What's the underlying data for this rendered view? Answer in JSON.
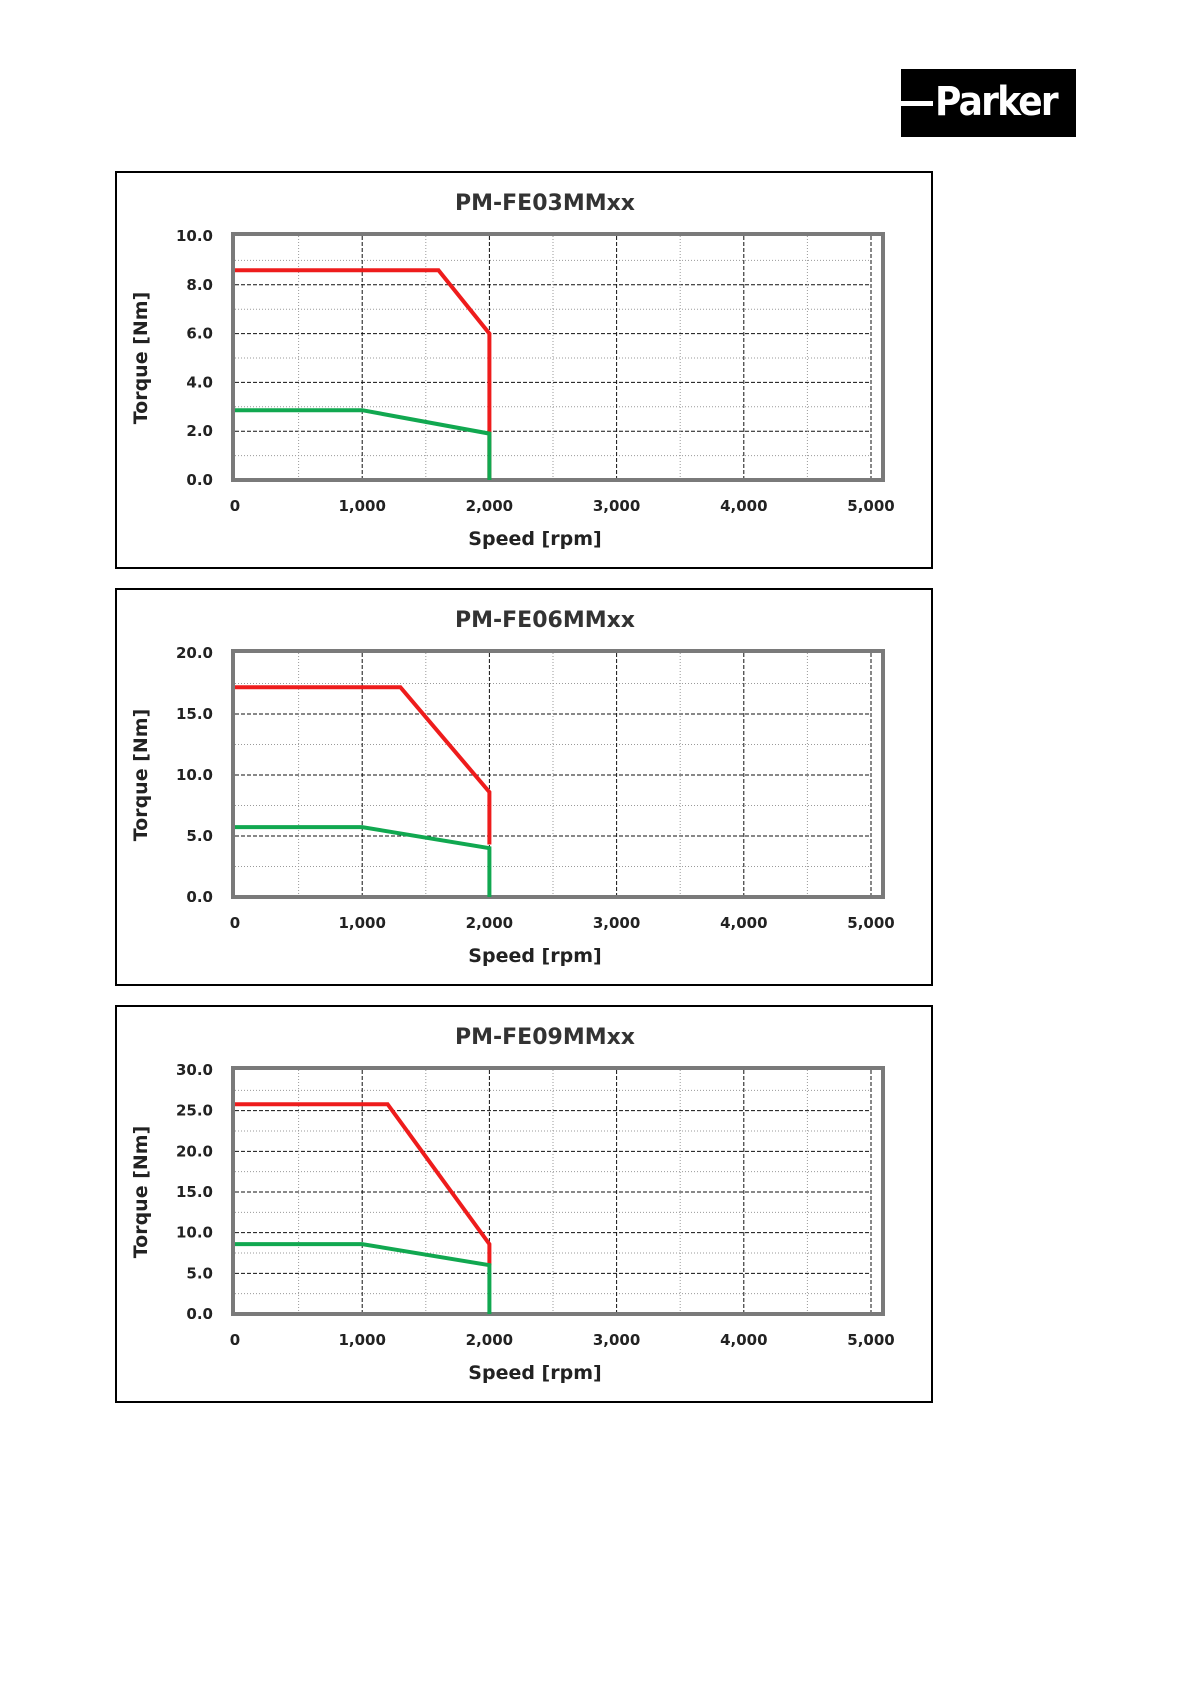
{
  "logo": {
    "text": "Parker"
  },
  "chart_data": [
    {
      "type": "line",
      "title": "PM-FE03MMxx",
      "xlabel": "Speed  [rpm]",
      "ylabel": "Torque [Nm]",
      "xlim": [
        0,
        5000
      ],
      "ylim": [
        0,
        10
      ],
      "x_ticks": [
        "0",
        "1,000",
        "2,000",
        "3,000",
        "4,000",
        "5,000"
      ],
      "y_ticks": [
        "0.0",
        "2.0",
        "4.0",
        "6.0",
        "8.0",
        "10.0"
      ],
      "grid": true,
      "series": [
        {
          "color": "#ee1c1c",
          "x": [
            0,
            1600,
            2000,
            2000
          ],
          "y": [
            8.6,
            8.6,
            6.0,
            0
          ]
        },
        {
          "color": "#11a850",
          "x": [
            0,
            1000,
            2000,
            2000
          ],
          "y": [
            2.86,
            2.86,
            1.9,
            0
          ]
        }
      ]
    },
    {
      "type": "line",
      "title": "PM-FE06MMxx",
      "xlabel": "Speed  [rpm]",
      "ylabel": "Torque [Nm]",
      "xlim": [
        0,
        5000
      ],
      "ylim": [
        0,
        20
      ],
      "x_ticks": [
        "0",
        "1,000",
        "2,000",
        "3,000",
        "4,000",
        "5,000"
      ],
      "y_ticks": [
        "0.0",
        "5.0",
        "10.0",
        "15.0",
        "20.0"
      ],
      "grid": true,
      "series": [
        {
          "color": "#ee1c1c",
          "x": [
            0,
            1300,
            2000,
            2000
          ],
          "y": [
            17.2,
            17.2,
            8.6,
            4.3
          ]
        },
        {
          "color": "#11a850",
          "x": [
            0,
            1000,
            2000,
            2000
          ],
          "y": [
            5.73,
            5.73,
            4.0,
            0
          ]
        }
      ]
    },
    {
      "type": "line",
      "title": "PM-FE09MMxx",
      "xlabel": "Speed  [rpm]",
      "ylabel": "Torque [Nm]",
      "xlim": [
        0,
        5000
      ],
      "ylim": [
        0,
        30
      ],
      "x_ticks": [
        "0",
        "1,000",
        "2,000",
        "3,000",
        "4,000",
        "5,000"
      ],
      "y_ticks": [
        "0.0",
        "5.0",
        "10.0",
        "15.0",
        "20.0",
        "25.0",
        "30.0"
      ],
      "grid": true,
      "series": [
        {
          "color": "#ee1c1c",
          "x": [
            0,
            1200,
            2000,
            2000
          ],
          "y": [
            25.8,
            25.8,
            8.6,
            6.0
          ]
        },
        {
          "color": "#11a850",
          "x": [
            0,
            1000,
            2000,
            2000
          ],
          "y": [
            8.6,
            8.6,
            6.0,
            0
          ]
        }
      ]
    }
  ]
}
